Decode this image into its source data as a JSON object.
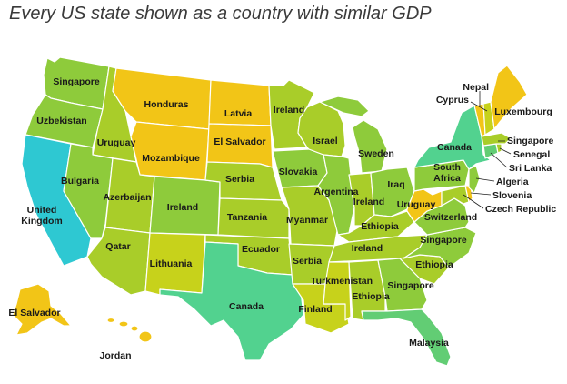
{
  "title": "Every US state shown as a country with similar GDP",
  "colors": {
    "yellow": "#f2c517",
    "yellow_green": "#c7d21b",
    "lime": "#a9cd29",
    "green": "#8ecb3b",
    "mint": "#62cd74",
    "teal": "#52d28f",
    "cyan": "#2ec8d2"
  },
  "labels": {
    "wa": "Singapore",
    "or": "Uzbekistan",
    "ca": "United\nKingdom",
    "id": "Uruguay",
    "nv": "Bulgaria",
    "mt": "Honduras",
    "wy": "Mozambique",
    "ut": "Azerbaijan",
    "co": "Ireland",
    "az": "Qatar",
    "nm": "Lithuania",
    "nd": "Latvia",
    "sd": "El Salvador",
    "ne": "Serbia",
    "ks": "Tanzania",
    "ok": "Ecuador",
    "tx": "Canada",
    "mn": "Ireland",
    "ia": "Slovakia",
    "mo": "Myanmar",
    "ar": "Serbia",
    "la": "Finland",
    "wi": "Israel",
    "il": "Argentina",
    "mi": "Sweden",
    "in": "Ireland",
    "oh": "Iraq",
    "ky": "Ethiopia",
    "tn": "Ireland",
    "ms": "Turkmenistan",
    "al": "Ethiopia",
    "ga": "Singapore",
    "fl": "Malaysia",
    "sc": "Ethiopia",
    "nc": "Singapore",
    "va": "Switzerland",
    "wv": "Uruguay",
    "pa": "South\nAfrica",
    "ny": "Canada",
    "vt": "Nepal",
    "nh": "Cyprus",
    "me": "Luxembourg",
    "ma": "Singapore",
    "ri": "Senegal",
    "ct": "Sri Lanka",
    "nj": "Algeria",
    "de": "Slovenia",
    "md": "Czech Republic",
    "ak": "El Salvador",
    "hi": "Jordan"
  }
}
